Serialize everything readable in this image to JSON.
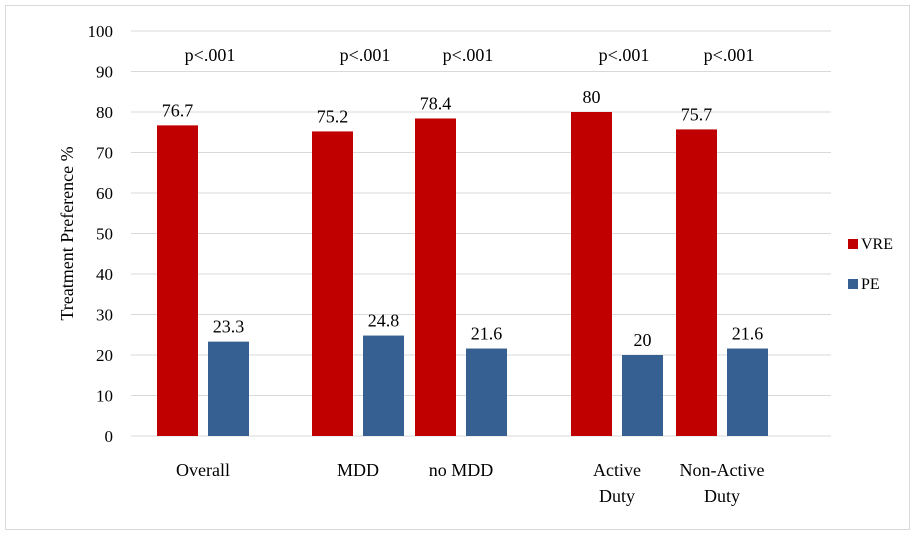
{
  "chart_data": {
    "type": "bar",
    "title": "",
    "xlabel": "",
    "ylabel": "Treatment Preference %",
    "ylim": [
      0,
      100
    ],
    "yticks": [
      0,
      10,
      20,
      30,
      40,
      50,
      60,
      70,
      80,
      90,
      100
    ],
    "grid": true,
    "legend_position": "right",
    "categories": [
      {
        "lines": [
          "Overall"
        ]
      },
      {
        "lines": [
          "MDD"
        ]
      },
      {
        "lines": [
          "no MDD"
        ]
      },
      {
        "lines": [
          "Active",
          "Duty"
        ]
      },
      {
        "lines": [
          "Non-Active",
          "Duty"
        ]
      }
    ],
    "series": [
      {
        "name": "VRE",
        "color": "#c00000",
        "values": [
          76.7,
          75.2,
          78.4,
          80,
          75.7
        ],
        "labels": [
          "76.7",
          "75.2",
          "78.4",
          "80",
          "75.7"
        ]
      },
      {
        "name": "PE",
        "color": "#376092",
        "values": [
          23.3,
          24.8,
          21.6,
          20,
          21.6
        ],
        "labels": [
          "23.3",
          "24.8",
          "21.6",
          "20",
          "21.6"
        ]
      }
    ],
    "annotations": [
      "p<.001",
      "p<.001",
      "p<.001",
      "p<.001",
      "p<.001"
    ]
  }
}
